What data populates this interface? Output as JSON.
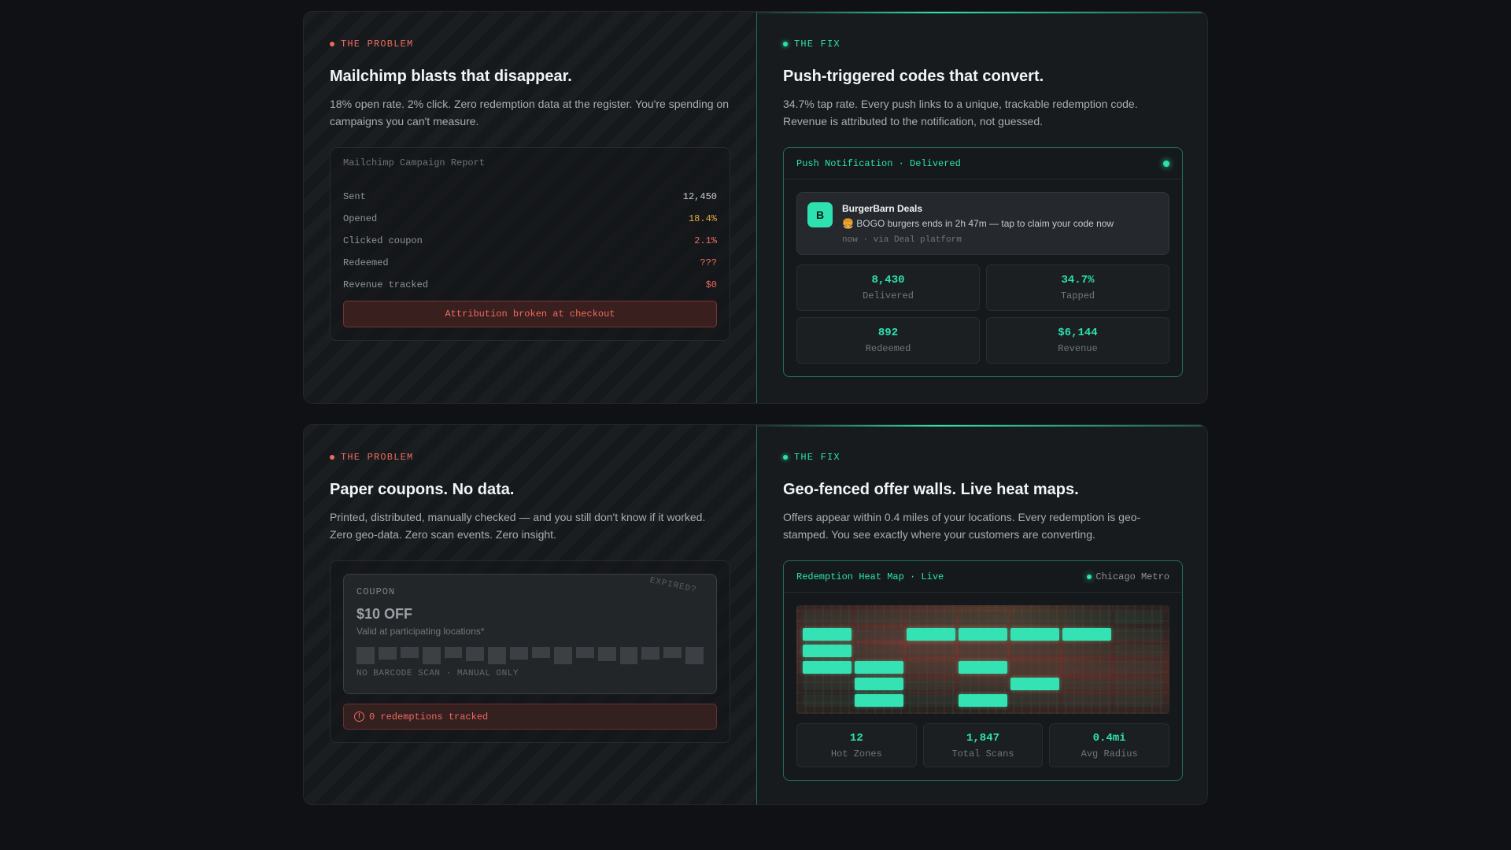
{
  "panel1": {
    "problem": {
      "tag": "THE PROBLEM",
      "title": "Mailchimp blasts that disappear.",
      "desc": "18% open rate. 2% click. Zero redemption data at the register. You're spending on campaigns you can't measure.",
      "report": {
        "title": "Mailchimp Campaign Report",
        "rows": [
          {
            "label": "Sent",
            "value": "12,450"
          },
          {
            "label": "Opened",
            "value": "18.4%"
          },
          {
            "label": "Clicked coupon",
            "value": "2.1%"
          },
          {
            "label": "Redeemed",
            "value": "???"
          },
          {
            "label": "Revenue tracked",
            "value": "$0"
          }
        ],
        "alert": "Attribution broken at checkout"
      }
    },
    "fix": {
      "tag": "THE FIX",
      "title": "Push-triggered codes that convert.",
      "desc": "34.7% tap rate. Every push links to a unique, trackable redemption code. Revenue is attributed to the notification, not guessed.",
      "card": {
        "header": "Push Notification · Delivered",
        "notification": {
          "icon_letter": "B",
          "app": "BurgerBarn Deals",
          "message": "🍔 BOGO burgers ends in 2h 47m — tap to claim your code now",
          "meta": "now · via Deal platform"
        },
        "stats": [
          {
            "value": "8,430",
            "label": "Delivered"
          },
          {
            "value": "34.7%",
            "label": "Tapped"
          },
          {
            "value": "892",
            "label": "Redeemed"
          },
          {
            "value": "$6,144",
            "label": "Revenue"
          }
        ]
      }
    }
  },
  "panel2": {
    "problem": {
      "tag": "THE PROBLEM",
      "title": "Paper coupons. No data.",
      "desc": "Printed, distributed, manually checked — and you still don't know if it worked. Zero geo-data. Zero scan events. Zero insight.",
      "coupon": {
        "kicker": "COUPON",
        "amount": "$10 OFF",
        "valid": "Valid at participating locations*",
        "footer": "NO BARCODE SCAN · MANUAL ONLY",
        "stamp": "EXPIRED?"
      },
      "alert": "0 redemptions tracked"
    },
    "fix": {
      "tag": "THE FIX",
      "title": "Geo-fenced offer walls. Live heat maps.",
      "desc": "Offers appear within 0.4 miles of your locations. Every redemption is geo-stamped. You see exactly where your customers are converting.",
      "card": {
        "header": "Redemption Heat Map · Live",
        "region": "Chicago Metro",
        "stats": [
          {
            "value": "12",
            "label": "Hot Zones"
          },
          {
            "value": "1,847",
            "label": "Total Scans"
          },
          {
            "value": "0.4mi",
            "label": "Avg Radius"
          }
        ]
      }
    }
  },
  "colors": {
    "accent": "#2de2b0",
    "problem": "#ef6a5e",
    "warning": "#e7a93b",
    "background": "#0f1114"
  },
  "icons": {
    "problem_tag": "red-dot-icon",
    "fix_tag": "green-dot-icon",
    "live_indicator": "live-dot-icon",
    "alert": "alert-circle-icon"
  }
}
